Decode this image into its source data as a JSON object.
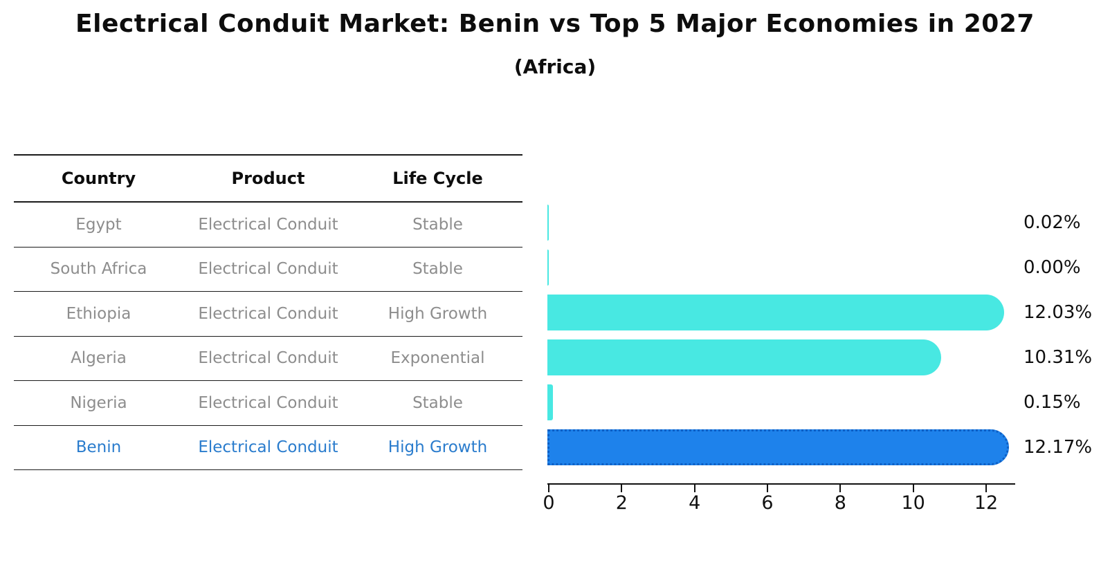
{
  "title": "Electrical Conduit Market: Benin vs Top 5 Major Economies in 2027",
  "subtitle": "(Africa)",
  "table": {
    "headers": [
      "Country",
      "Product",
      "Life Cycle"
    ],
    "rows": [
      {
        "country": "Egypt",
        "product": "Electrical Conduit",
        "life_cycle": "Stable",
        "highlight": false
      },
      {
        "country": "South Africa",
        "product": "Electrical Conduit",
        "life_cycle": "Stable",
        "highlight": false
      },
      {
        "country": "Ethiopia",
        "product": "Electrical Conduit",
        "life_cycle": "High Growth",
        "highlight": false
      },
      {
        "country": "Algeria",
        "product": "Electrical Conduit",
        "life_cycle": "Exponential",
        "highlight": false
      },
      {
        "country": "Nigeria",
        "product": "Electrical Conduit",
        "life_cycle": "Stable",
        "highlight": false
      },
      {
        "country": "Benin",
        "product": "Electrical Conduit",
        "life_cycle": "High Growth",
        "highlight": true
      }
    ]
  },
  "chart_data": {
    "type": "bar",
    "orientation": "horizontal",
    "title": "Electrical Conduit Market: Benin vs Top 5 Major Economies in 2027",
    "subtitle": "(Africa)",
    "categories": [
      "Egypt",
      "South Africa",
      "Ethiopia",
      "Algeria",
      "Nigeria",
      "Benin"
    ],
    "values": [
      0.02,
      0.0,
      12.03,
      10.31,
      0.15,
      12.17
    ],
    "value_labels": [
      "0.02%",
      "0.00%",
      "12.03%",
      "10.31%",
      "0.15%",
      "12.17%"
    ],
    "xlabel": "",
    "ylabel": "",
    "xlim": [
      0,
      12.8
    ],
    "xticks": [
      0,
      2,
      4,
      6,
      8,
      10,
      12
    ],
    "grid": false,
    "legend": "none",
    "bar_color": "#48E8E2",
    "highlight_color": "#1E82EB",
    "highlight_edge_color": "#0E5FC4",
    "highlight_index": 5,
    "highlight_text_color": "#2A7CCD"
  },
  "colors": {
    "background": "#FFFFFF",
    "table_line": "#1A1A1A",
    "header_text": "#0D0D0D",
    "cell_text": "#8D8D8D",
    "axis": "#111111",
    "value_label_text": "#0F0F0F"
  }
}
